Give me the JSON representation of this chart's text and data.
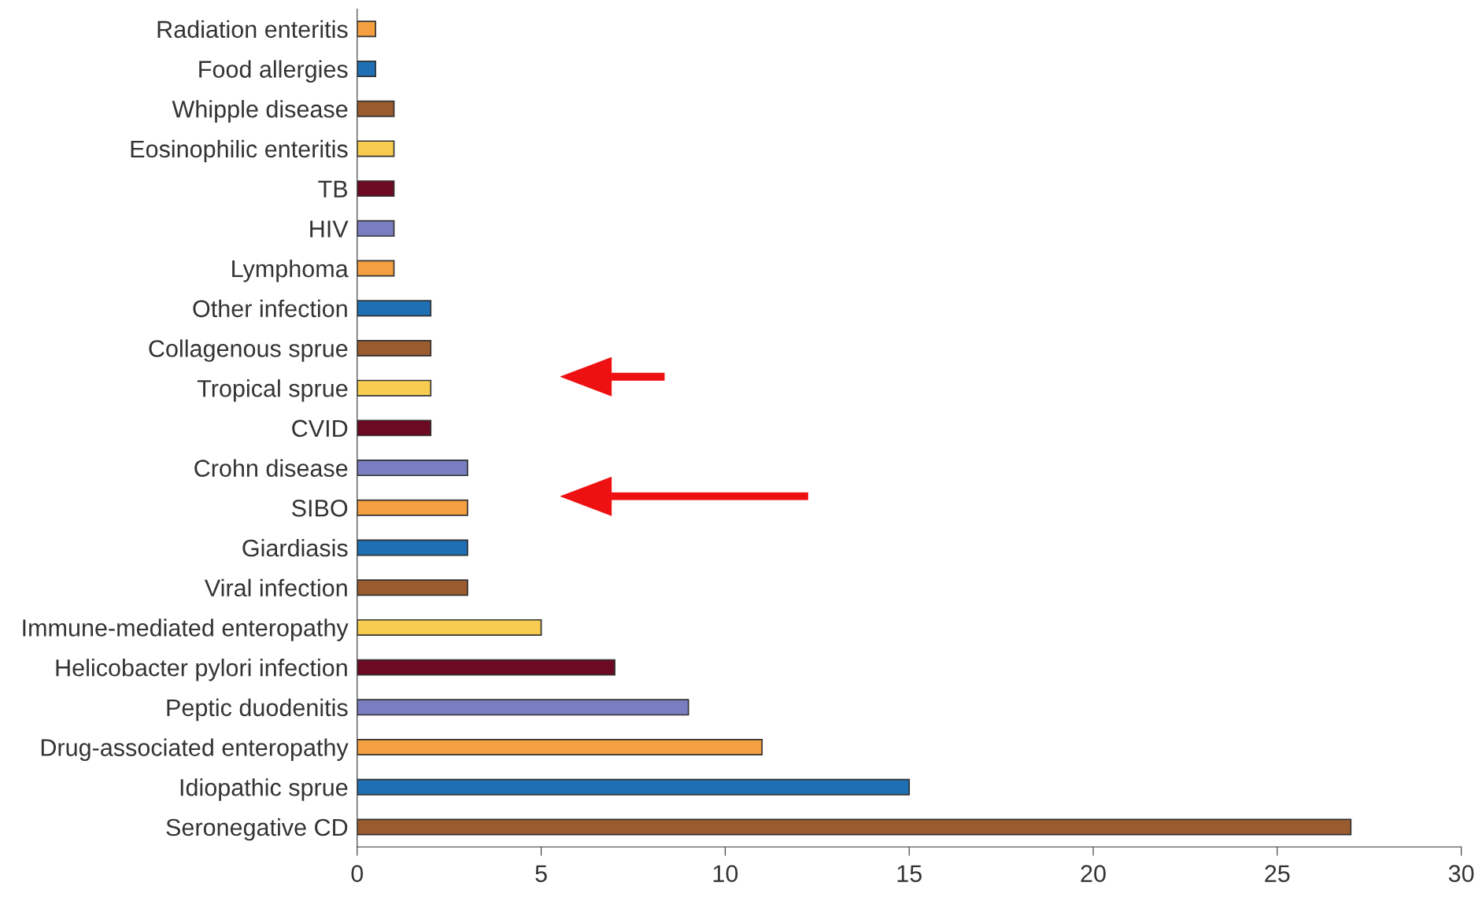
{
  "chart_data": {
    "type": "bar",
    "orientation": "horizontal",
    "categories": [
      "Radiation enteritis",
      "Food allergies",
      "Whipple disease",
      "Eosinophilic enteritis",
      "TB",
      "HIV",
      "Lymphoma",
      "Other infection",
      "Collagenous sprue",
      "Tropical sprue",
      "CVID",
      "Crohn disease",
      "SIBO",
      "Giardiasis",
      "Viral infection",
      "Immune-mediated enteropathy",
      "Helicobacter pylori infection",
      "Peptic duodenitis",
      "Drug-associated enteropathy",
      "Idiopathic sprue",
      "Seronegative CD"
    ],
    "values": [
      0.5,
      0.5,
      1,
      1,
      1,
      1,
      1,
      2,
      2,
      2,
      2,
      3,
      3,
      3,
      3,
      5,
      7,
      9,
      11,
      15,
      27
    ],
    "colors": [
      "#f5a040",
      "#1f6fb5",
      "#9a5c2e",
      "#f8cc50",
      "#6b0a22",
      "#7a7ec0",
      "#f5a040",
      "#1f6fb5",
      "#9a5c2e",
      "#f8cc50",
      "#6b0a22",
      "#7a7ec0",
      "#f5a040",
      "#1f6fb5",
      "#9a5c2e",
      "#f8cc50",
      "#6b0a22",
      "#7a7ec0",
      "#f5a040",
      "#1f6fb5",
      "#9a5c2e"
    ],
    "xlim": [
      0,
      30
    ],
    "xticks": [
      0,
      5,
      10,
      15,
      20,
      25,
      30
    ],
    "grid": false,
    "legend": false
  }
}
